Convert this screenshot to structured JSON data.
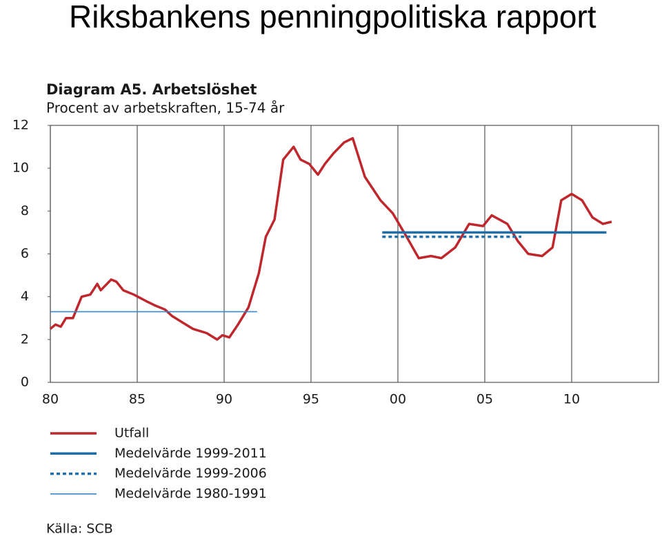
{
  "page_title": "Riksbankens penningpolitiska rapport",
  "chart_data": {
    "type": "line",
    "title": "Diagram A5. Arbetslöshet",
    "subtitle": "Procent av arbetskraften, 15-74 år",
    "source": "Källa: SCB",
    "xlim": [
      1980,
      2015
    ],
    "xticks": [
      {
        "value": 1980,
        "label": "80"
      },
      {
        "value": 1985,
        "label": "85"
      },
      {
        "value": 1990,
        "label": "90"
      },
      {
        "value": 1995,
        "label": "95"
      },
      {
        "value": 2000,
        "label": "00"
      },
      {
        "value": 2005,
        "label": "05"
      },
      {
        "value": 2010,
        "label": "10"
      }
    ],
    "ylim": [
      0,
      12
    ],
    "yticks": [
      0,
      2,
      4,
      6,
      8,
      10,
      12
    ],
    "grid": "vertical",
    "series": [
      {
        "name": "Utfall",
        "color": "#c0272d",
        "line_style": "solid",
        "line_weight": "thick",
        "x": [
          1980.0,
          1980.3,
          1980.6,
          1980.9,
          1981.3,
          1981.5,
          1981.8,
          1982.3,
          1982.7,
          1982.9,
          1983.5,
          1983.8,
          1984.2,
          1984.8,
          1985.5,
          1986.0,
          1986.6,
          1987.0,
          1987.6,
          1988.2,
          1989.0,
          1989.6,
          1989.9,
          1990.3,
          1990.8,
          1991.4,
          1992.0,
          1992.4,
          1992.9,
          1993.4,
          1994.0,
          1994.4,
          1994.9,
          1995.4,
          1995.8,
          1996.3,
          1996.9,
          1997.4,
          1998.1,
          1999.0,
          1999.7,
          2000.5,
          2001.2,
          2001.9,
          2002.5,
          2003.3,
          2004.1,
          2004.9,
          2005.4,
          2006.3,
          2006.9,
          2007.5,
          2008.3,
          2008.9,
          2009.4,
          2010.0,
          2010.6,
          2011.2,
          2011.8,
          2012.3
        ],
        "values": [
          2.5,
          2.7,
          2.6,
          3.0,
          3.0,
          3.4,
          4.0,
          4.1,
          4.6,
          4.3,
          4.8,
          4.7,
          4.3,
          4.1,
          3.8,
          3.6,
          3.4,
          3.1,
          2.8,
          2.5,
          2.3,
          2.0,
          2.2,
          2.1,
          2.7,
          3.5,
          5.1,
          6.8,
          7.6,
          10.4,
          11.0,
          10.4,
          10.2,
          9.7,
          10.2,
          10.7,
          11.2,
          11.4,
          9.6,
          8.5,
          7.9,
          6.8,
          5.8,
          5.9,
          5.8,
          6.3,
          7.4,
          7.3,
          7.8,
          7.4,
          6.6,
          6.0,
          5.9,
          6.3,
          8.5,
          8.8,
          8.5,
          7.7,
          7.4,
          7.5
        ]
      },
      {
        "name": "Medelvärde 1999-2011",
        "color": "#1f6ea8",
        "line_style": "solid",
        "line_weight": "thick",
        "x": [
          1999.1,
          2012.0
        ],
        "values": [
          7.0,
          7.0
        ]
      },
      {
        "name": "Medelvärde 1999-2006",
        "color": "#1f6ea8",
        "line_style": "dotted",
        "line_weight": "thick",
        "x": [
          1999.1,
          2007.1
        ],
        "values": [
          6.8,
          6.8
        ]
      },
      {
        "name": "Medelvärde 1980-1991",
        "color": "#3a86c8",
        "line_style": "solid",
        "line_weight": "thin",
        "x": [
          1980.0,
          1991.9
        ],
        "values": [
          3.3,
          3.3
        ]
      }
    ]
  }
}
